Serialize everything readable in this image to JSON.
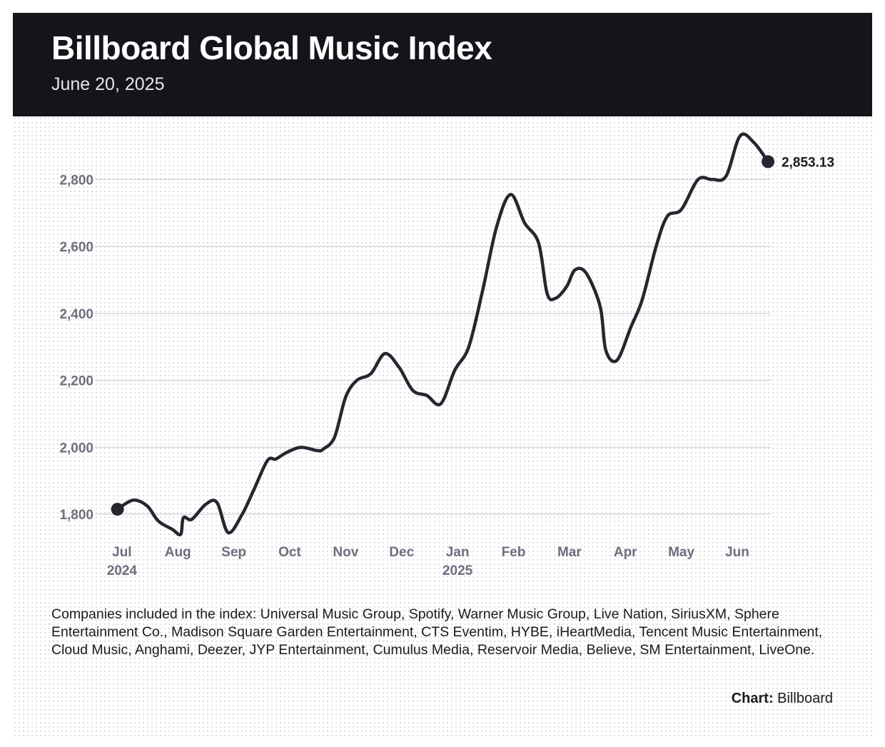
{
  "header": {
    "title": "Billboard Global Music Index",
    "date": "June 20, 2025"
  },
  "footnote": "Companies included in the index: Universal Music Group, Spotify, Warner Music Group, Live Nation, SiriusXM, Sphere Entertainment Co., Madison Square Garden Entertainment, CTS Eventim, HYBE, iHeartMedia, Tencent Music Entertainment, Cloud Music, Anghami, Deezer, JYP Entertainment, Cumulus Media, Reservoir Media, Believe, SM Entertainment, LiveOne.",
  "credit": {
    "label": "Chart:",
    "source": "Billboard"
  },
  "colors": {
    "header_bg": "#14141b",
    "line": "#262630",
    "axis_text": "#6e6e7e",
    "grid": "#d8d8dc"
  },
  "chart_data": {
    "type": "line",
    "title": "Billboard Global Music Index",
    "subtitle": "June 20, 2025",
    "xlabel": "",
    "ylabel": "",
    "ylim": [
      1700,
      2950
    ],
    "yticks": [
      1800,
      2000,
      2200,
      2400,
      2600,
      2800
    ],
    "ytick_labels": [
      "1,800",
      "2,000",
      "2,200",
      "2,400",
      "2,600",
      "2,800"
    ],
    "xlim": [
      -0.1,
      11.6
    ],
    "xticks": [
      {
        "pos": 0,
        "label": "Jul",
        "sub": "2024"
      },
      {
        "pos": 1,
        "label": "Aug",
        "sub": ""
      },
      {
        "pos": 2,
        "label": "Sep",
        "sub": ""
      },
      {
        "pos": 3,
        "label": "Oct",
        "sub": ""
      },
      {
        "pos": 4,
        "label": "Nov",
        "sub": ""
      },
      {
        "pos": 5,
        "label": "Dec",
        "sub": ""
      },
      {
        "pos": 6,
        "label": "Jan",
        "sub": "2025"
      },
      {
        "pos": 7,
        "label": "Feb",
        "sub": ""
      },
      {
        "pos": 8,
        "label": "Mar",
        "sub": ""
      },
      {
        "pos": 9,
        "label": "Apr",
        "sub": ""
      },
      {
        "pos": 10,
        "label": "May",
        "sub": ""
      },
      {
        "pos": 11,
        "label": "Jun",
        "sub": ""
      }
    ],
    "grid": true,
    "series": [
      {
        "name": "Billboard Global Music Index",
        "x": [
          -0.08,
          0.2,
          0.45,
          0.65,
          0.9,
          1.05,
          1.1,
          1.25,
          1.5,
          1.7,
          1.9,
          2.15,
          2.35,
          2.6,
          2.75,
          2.95,
          3.2,
          3.5,
          3.6,
          3.8,
          4.0,
          4.2,
          4.45,
          4.7,
          4.95,
          5.2,
          5.45,
          5.7,
          5.95,
          6.2,
          6.45,
          6.7,
          6.95,
          7.2,
          7.45,
          7.6,
          7.75,
          7.95,
          8.1,
          8.3,
          8.55,
          8.65,
          8.85,
          9.1,
          9.3,
          9.55,
          9.75,
          10.0,
          10.3,
          10.55,
          10.8,
          11.05,
          11.3,
          11.55
        ],
        "values": [
          1815,
          1842,
          1825,
          1780,
          1755,
          1740,
          1790,
          1785,
          1830,
          1835,
          1745,
          1800,
          1870,
          1960,
          1965,
          1985,
          2000,
          1990,
          1995,
          2030,
          2150,
          2200,
          2220,
          2280,
          2240,
          2170,
          2155,
          2130,
          2230,
          2300,
          2470,
          2660,
          2755,
          2670,
          2610,
          2460,
          2445,
          2480,
          2530,
          2520,
          2420,
          2290,
          2260,
          2360,
          2440,
          2600,
          2690,
          2710,
          2800,
          2800,
          2810,
          2930,
          2910,
          2853.13
        ]
      }
    ],
    "last_value_label": "2,853.13"
  }
}
